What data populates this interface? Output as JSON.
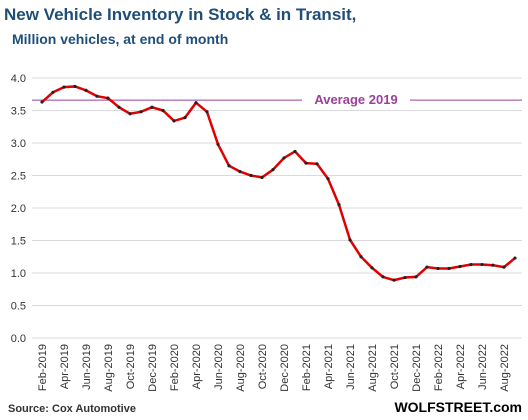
{
  "chart_data": {
    "type": "line",
    "title": "New Vehicle Inventory in Stock & in Transit,",
    "subtitle": "Million vehicles, at end of month",
    "source": "Source: Cox Automotive",
    "brand": "WOLFSTREET.com",
    "categories": [
      "Feb-2019",
      null,
      "Apr-2019",
      null,
      "Jun-2019",
      null,
      "Aug-2019",
      null,
      "Oct-2019",
      null,
      "Dec-2019",
      null,
      "Feb-2020",
      null,
      "Apr-2020",
      null,
      "Jun-2020",
      null,
      "Aug-2020",
      null,
      "Oct-2020",
      null,
      "Dec-2020",
      null,
      "Feb-2021",
      null,
      "Apr-2021",
      null,
      "Jun-2021",
      null,
      "Aug-2021",
      null,
      "Oct-2021",
      null,
      "Dec-2021",
      null,
      "Feb-2022",
      null,
      "Apr-2022",
      null,
      "Jun-2022",
      null,
      "Aug-2022",
      null
    ],
    "series": [
      {
        "name": "Inventory",
        "color": "#e00000",
        "values": [
          3.63,
          3.78,
          3.86,
          3.87,
          3.81,
          3.72,
          3.69,
          3.55,
          3.45,
          3.48,
          3.55,
          3.5,
          3.34,
          3.39,
          3.62,
          3.48,
          2.98,
          2.65,
          2.56,
          2.5,
          2.47,
          2.59,
          2.77,
          2.87,
          2.69,
          2.68,
          2.45,
          2.05,
          1.51,
          1.25,
          1.08,
          0.94,
          0.89,
          0.93,
          0.94,
          1.09,
          1.07,
          1.07,
          1.1,
          1.13,
          1.13,
          1.12,
          1.09,
          1.23
        ]
      }
    ],
    "reference_line": {
      "label": "Average 2019",
      "value": 3.66,
      "color": "#9b3f9b"
    },
    "ylim": [
      0,
      4
    ],
    "yticks": [
      {
        "value": 0,
        "label": "0.0"
      },
      {
        "value": 0.5,
        "label": "0.5"
      },
      {
        "value": 1,
        "label": "1.0"
      },
      {
        "value": 1.5,
        "label": "1.5"
      },
      {
        "value": 2,
        "label": "2.0"
      },
      {
        "value": 2.5,
        "label": "2.5"
      },
      {
        "value": 3,
        "label": "3.0"
      },
      {
        "value": 3.5,
        "label": "3.5"
      },
      {
        "value": 4,
        "label": "4.0"
      }
    ],
    "grid": true
  }
}
